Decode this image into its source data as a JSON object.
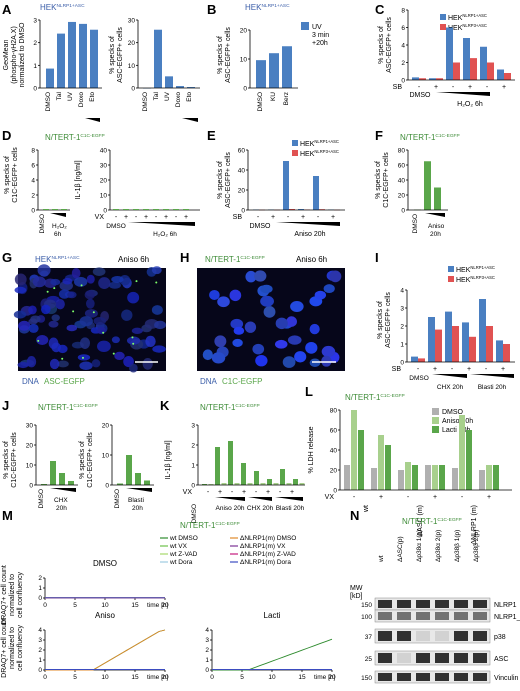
{
  "colors": {
    "blue": "#4a7fc1",
    "red": "#e05252",
    "green": "#5aa64a",
    "light_green": "#a8d08d",
    "grey": "#b0b0b0",
    "dark_green": "#3d8b37"
  },
  "panels": {
    "A": {
      "letter": "A",
      "cell": "HEK",
      "cell_sup": "NLRP1+ASC",
      "left_ylabel": [
        "GeoMean",
        "(phospho-γH2A.X)",
        "normalized to DMSO"
      ],
      "right_ylabel": [
        "% specks of",
        "ASC-EGFP+ cells"
      ],
      "categories": [
        "DMSO",
        "Tal",
        "UV",
        "Doxo",
        "Eto"
      ],
      "left_values": [
        1,
        2.8,
        3.4,
        3.3,
        3.0
      ],
      "right_values": [
        0,
        30,
        6,
        1,
        0.5
      ],
      "left_ticks": [
        "0",
        "1",
        "2",
        "3"
      ],
      "right_ticks": [
        "0",
        "10",
        "20",
        "30"
      ]
    },
    "B": {
      "letter": "B",
      "cell": "HEK",
      "cell_sup": "NLRP1+ASC",
      "ylabel": [
        "% specks of",
        "ASC-EGFP+ cells"
      ],
      "legend": [
        "UV",
        "3 min",
        "+20h"
      ],
      "categories": [
        "DMSO",
        "KU",
        "Berz"
      ],
      "values": [
        12,
        15,
        18
      ],
      "ticks": [
        "0",
        "10",
        "20"
      ]
    },
    "C": {
      "letter": "C",
      "legend": [
        {
          "cell": "HEK",
          "sup": "NLRP1+ASC"
        },
        {
          "cell": "HEK",
          "sup": "NLRP3+ASC"
        }
      ],
      "ylabel": [
        "% specks of",
        "ASC-EGFP+ cells"
      ],
      "ticks": [
        "0",
        "2",
        "4",
        "6",
        "8"
      ],
      "sb": "SB",
      "x_labels": [
        "DMSO",
        "H₂O₂ 6h"
      ],
      "nlrp1": [
        0.3,
        0.2,
        6,
        4.8,
        3.8,
        1.2
      ],
      "nlrp3": [
        0.2,
        0.2,
        2,
        2.5,
        2,
        0.8
      ]
    },
    "D": {
      "letter": "D",
      "title": "N/TERT-1",
      "title_sup": "C1C-EGFP",
      "left_ylabel": [
        "% specks of",
        "C1C-EGFP+ cells"
      ],
      "right_ylabel": [
        "IL-1β [ng/ml]"
      ],
      "left_ticks": [
        "0",
        "2",
        "4",
        "6",
        "8"
      ],
      "right_ticks": [
        "0",
        "10",
        "20",
        "30",
        "40"
      ],
      "left_x": [
        "DMSO",
        "H₂O₂",
        "6h"
      ],
      "vx": "VX",
      "right_x": [
        "DMSO",
        "H₂O₂ 6h"
      ]
    },
    "E": {
      "letter": "E",
      "legend": [
        {
          "cell": "HEK",
          "sup": "NLRP1+ASC"
        },
        {
          "cell": "HEK",
          "sup": "NLRP3+ASC"
        }
      ],
      "ylabel": [
        "% specks of",
        "ASC-EGFP+ cells"
      ],
      "ticks": [
        "0",
        "20",
        "40",
        "60"
      ],
      "sb": "SB",
      "x_labels": [
        "DMSO",
        "Aniso 20h"
      ],
      "nlrp1": [
        0.5,
        0.5,
        49,
        1,
        34,
        0.5
      ],
      "nlrp3": [
        0.3,
        0.3,
        1,
        0.5,
        0.8,
        0.3
      ]
    },
    "F": {
      "letter": "F",
      "title": "N/TERT-1",
      "title_sup": "C1C-EGFP",
      "ylabel": [
        "% specks of",
        "C1C-EGFP+ cells"
      ],
      "ticks": [
        "0",
        "20",
        "40",
        "60",
        "80"
      ],
      "categories": [
        "DMSO",
        "Aniso",
        "20h"
      ],
      "values": [
        0.5,
        65,
        30
      ]
    },
    "G": {
      "letter": "G",
      "cell": "HEK",
      "cell_sup": "NLRP1+ASC",
      "treatment": "Aniso 6h",
      "legend": [
        "DNA",
        "ASC-EGFP"
      ]
    },
    "H": {
      "letter": "H",
      "title": "N/TERT-1",
      "title_sup": "C1C-EGFP",
      "treatment": "Aniso 6h",
      "legend": [
        "DNA",
        "C1C-EGFP"
      ]
    },
    "I": {
      "letter": "I",
      "legend": [
        {
          "cell": "HEK",
          "sup": "NLRP1+ASC"
        },
        {
          "cell": "HEK",
          "sup": "NLRP3+ASC"
        }
      ],
      "ylabel": [
        "% specks of",
        "ASC-EGFP+ cells"
      ],
      "ticks": [
        "0",
        "1",
        "2",
        "3",
        "4"
      ],
      "sb": "SB",
      "x_labels": [
        "DMSO",
        "CHX 20h",
        "Blasti 20h"
      ],
      "nlrp1": [
        0.3,
        2.5,
        2.8,
        2.2,
        3.5,
        1.2
      ],
      "nlrp3": [
        0.2,
        1.8,
        2,
        1.4,
        2,
        1
      ]
    },
    "J": {
      "letter": "J",
      "title": "N/TERT-1",
      "title_sup": "C1C-EGFP",
      "ylabel": [
        "% specks of",
        "C1C-EGFP+ cells"
      ],
      "ylabel2": [
        "% specks of",
        "C1C-EGFP+ cells"
      ],
      "left_ticks": [
        "0",
        "10",
        "20",
        "30"
      ],
      "right_ticks": [
        "0",
        "10",
        "20"
      ],
      "left_x": [
        "DMSO",
        "CHX",
        "20h"
      ],
      "right_x": [
        "DMSO",
        "Blasti",
        "20h"
      ],
      "left_values": [
        0.5,
        12,
        6,
        2
      ],
      "right_values": [
        0.5,
        10,
        4,
        1.5
      ]
    },
    "K": {
      "letter": "K",
      "title": "N/TERT-1",
      "title_sup": "C1C-EGFP",
      "ylabel": [
        "IL-1β [ng/ml]"
      ],
      "ticks": [
        "0",
        "1",
        "2",
        "3"
      ],
      "vx": "VX",
      "x_labels": [
        "DMSO",
        "Aniso 20h",
        "CHX 20h",
        "Blasti 20h"
      ],
      "values": [
        0.05,
        0.05,
        1.9,
        0.1,
        2.2,
        0.1,
        1.1,
        0.1,
        0.7,
        0.1,
        0.3,
        0.1,
        0.8,
        0.1,
        0.3,
        0.1
      ]
    },
    "L": {
      "letter": "L",
      "title": "N/TERT-1",
      "title_sup": "C1C-EGFP",
      "ylabel": [
        "% LDH release"
      ],
      "ticks": [
        "0",
        "20",
        "40",
        "60",
        "80"
      ],
      "legend": [
        "DMSO",
        "Aniso 20h",
        "Lacti 20h"
      ],
      "vx": "VX",
      "groups": [
        "wt",
        "ΔASC (m)",
        "ΔNLRP1 (m)"
      ],
      "dmso": [
        25,
        22,
        20,
        25,
        22,
        20
      ],
      "aniso": [
        80,
        55,
        28,
        25,
        75,
        25
      ],
      "lacti": [
        60,
        45,
        25,
        25,
        60,
        25
      ]
    },
    "M": {
      "letter": "M",
      "title": "N/TERT-1",
      "title_sup": "C1C-EGFP",
      "ylabel": [
        "DRAQ7+ cell count",
        "normalized to",
        "cell confluency"
      ],
      "xlabel": "time [h]",
      "ticks_y": [
        "0",
        "1",
        "2",
        "3",
        "4"
      ],
      "ticks_x": [
        "0",
        "5",
        "10",
        "15",
        "20"
      ],
      "subplots": [
        "DMSO",
        "Aniso",
        "Lacti"
      ],
      "legend": [
        "wt DMSO",
        "wt VX",
        "wt Z-VAD",
        "wt Dora",
        "ΔNLRP1(m) DMSO",
        "ΔNLRP1(m) VX",
        "ΔNLRP1(m) Z-VAD",
        "ΔNLRP1(m) Dora"
      ],
      "legend_colors": [
        "#2e8b2e",
        "#6cc24a",
        "#a6d96a",
        "#9ecae1",
        "#e08a2a",
        "#7b3294",
        "#c51b7d",
        "#3b4cc0"
      ]
    },
    "N": {
      "letter": "N",
      "title": "N/TERT-1",
      "title_sup": "C1C-EGFP",
      "mw": [
        "MW",
        "[kD]"
      ],
      "lanes": [
        "wt",
        "ΔASC(p)",
        "Δp38α 1(p)",
        "Δp38α 2(p)",
        "Δp38β 1(p)",
        "Δp38β 2(p)"
      ],
      "bands": [
        "NLRP1",
        "NLRP1_N",
        "p38",
        "ASC",
        "Vinculin"
      ],
      "mw_marks": [
        "150",
        "100",
        "37",
        "25",
        "150"
      ]
    }
  },
  "chart_data": [
    {
      "type": "bar",
      "panel": "A-left",
      "categories": [
        "DMSO",
        "Tal",
        "UV",
        "Doxo",
        "Eto"
      ],
      "values": [
        1,
        2.8,
        3.4,
        3.3,
        3.0
      ],
      "ylabel": "GeoMean (phospho-γH2A.X) normalized to DMSO",
      "ylim": [
        0,
        3.5
      ]
    },
    {
      "type": "bar",
      "panel": "A-right",
      "categories": [
        "DMSO",
        "Tal",
        "UV",
        "Doxo",
        "Eto"
      ],
      "values": [
        0,
        30,
        6,
        1,
        0.5
      ],
      "ylabel": "% specks of ASC-EGFP+ cells",
      "ylim": [
        0,
        35
      ]
    },
    {
      "type": "bar",
      "panel": "B",
      "categories": [
        "DMSO",
        "KU",
        "Berz"
      ],
      "values": [
        12,
        15,
        18
      ],
      "ylabel": "% specks of ASC-EGFP+ cells",
      "ylim": [
        0,
        25
      ]
    },
    {
      "type": "bar",
      "panel": "E",
      "series": [
        {
          "name": "HEK NLRP1+ASC",
          "values": [
            0.5,
            0.5,
            49,
            1,
            34,
            0.5
          ]
        },
        {
          "name": "HEK NLRP3+ASC",
          "values": [
            0.3,
            0.3,
            1,
            0.5,
            0.8,
            0.3
          ]
        }
      ],
      "ylim": [
        0,
        60
      ]
    },
    {
      "type": "bar",
      "panel": "F",
      "categories": [
        "DMSO",
        "Aniso 20h",
        "Aniso 20h"
      ],
      "values": [
        0.5,
        65,
        30
      ],
      "ylim": [
        0,
        80
      ]
    }
  ]
}
